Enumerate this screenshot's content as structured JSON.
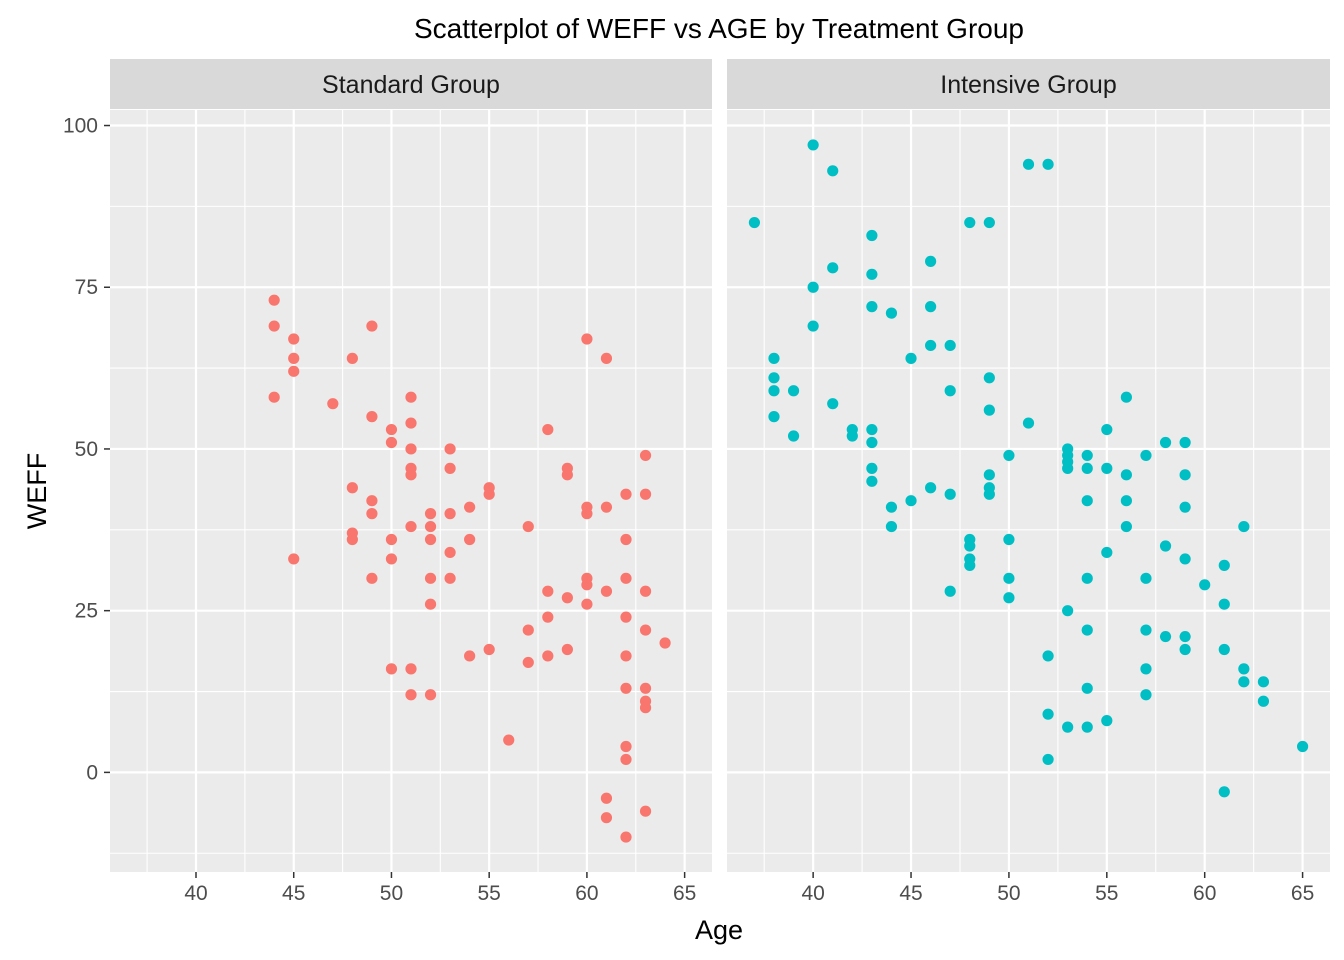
{
  "chart_data": {
    "type": "scatter",
    "title": "Scatterplot of WEFF vs AGE by Treatment Group",
    "xlabel": "Age",
    "ylabel": "WEFF",
    "xlim": [
      35.6,
      66.4
    ],
    "ylim": [
      -15.4,
      102.4
    ],
    "x_ticks": [
      40,
      45,
      50,
      55,
      60,
      65
    ],
    "y_ticks": [
      0,
      25,
      50,
      75,
      100
    ],
    "grid": true,
    "legend": "none",
    "panels": [
      {
        "name": "Standard Group",
        "color": "#F8766D",
        "points": [
          [
            44,
            73
          ],
          [
            44,
            69
          ],
          [
            44,
            58
          ],
          [
            45,
            67
          ],
          [
            45,
            64
          ],
          [
            45,
            62
          ],
          [
            45,
            33
          ],
          [
            47,
            57
          ],
          [
            48,
            64
          ],
          [
            48,
            44
          ],
          [
            48,
            37
          ],
          [
            48,
            36
          ],
          [
            49,
            69
          ],
          [
            49,
            55
          ],
          [
            49,
            42
          ],
          [
            49,
            40
          ],
          [
            49,
            30
          ],
          [
            50,
            53
          ],
          [
            50,
            51
          ],
          [
            50,
            36
          ],
          [
            50,
            33
          ],
          [
            50,
            16
          ],
          [
            51,
            58
          ],
          [
            51,
            54
          ],
          [
            51,
            50
          ],
          [
            51,
            47
          ],
          [
            51,
            46
          ],
          [
            51,
            38
          ],
          [
            51,
            16
          ],
          [
            51,
            12
          ],
          [
            52,
            40
          ],
          [
            52,
            38
          ],
          [
            52,
            36
          ],
          [
            52,
            30
          ],
          [
            52,
            26
          ],
          [
            52,
            12
          ],
          [
            53,
            50
          ],
          [
            53,
            47
          ],
          [
            53,
            40
          ],
          [
            53,
            34
          ],
          [
            53,
            30
          ],
          [
            54,
            41
          ],
          [
            54,
            36
          ],
          [
            54,
            18
          ],
          [
            55,
            44
          ],
          [
            55,
            43
          ],
          [
            55,
            19
          ],
          [
            56,
            5
          ],
          [
            57,
            38
          ],
          [
            57,
            22
          ],
          [
            57,
            17
          ],
          [
            58,
            53
          ],
          [
            58,
            28
          ],
          [
            58,
            24
          ],
          [
            58,
            18
          ],
          [
            59,
            47
          ],
          [
            59,
            46
          ],
          [
            59,
            27
          ],
          [
            59,
            19
          ],
          [
            60,
            67
          ],
          [
            60,
            41
          ],
          [
            60,
            40
          ],
          [
            60,
            30
          ],
          [
            60,
            29
          ],
          [
            60,
            26
          ],
          [
            61,
            64
          ],
          [
            61,
            41
          ],
          [
            61,
            28
          ],
          [
            61,
            -4
          ],
          [
            61,
            -7
          ],
          [
            62,
            43
          ],
          [
            62,
            36
          ],
          [
            62,
            30
          ],
          [
            62,
            24
          ],
          [
            62,
            18
          ],
          [
            62,
            13
          ],
          [
            62,
            4
          ],
          [
            62,
            2
          ],
          [
            62,
            -10
          ],
          [
            63,
            49
          ],
          [
            63,
            43
          ],
          [
            63,
            28
          ],
          [
            63,
            22
          ],
          [
            63,
            13
          ],
          [
            63,
            11
          ],
          [
            63,
            10
          ],
          [
            63,
            -6
          ],
          [
            64,
            20
          ]
        ]
      },
      {
        "name": "Intensive Group",
        "color": "#00BFC4",
        "points": [
          [
            37,
            85
          ],
          [
            38,
            64
          ],
          [
            38,
            61
          ],
          [
            38,
            59
          ],
          [
            38,
            55
          ],
          [
            39,
            59
          ],
          [
            39,
            52
          ],
          [
            40,
            97
          ],
          [
            40,
            75
          ],
          [
            40,
            69
          ],
          [
            41,
            93
          ],
          [
            41,
            78
          ],
          [
            41,
            57
          ],
          [
            42,
            53
          ],
          [
            42,
            52
          ],
          [
            43,
            83
          ],
          [
            43,
            77
          ],
          [
            43,
            72
          ],
          [
            43,
            53
          ],
          [
            43,
            51
          ],
          [
            43,
            47
          ],
          [
            43,
            45
          ],
          [
            44,
            71
          ],
          [
            44,
            41
          ],
          [
            44,
            38
          ],
          [
            45,
            64
          ],
          [
            45,
            42
          ],
          [
            46,
            79
          ],
          [
            46,
            72
          ],
          [
            46,
            66
          ],
          [
            46,
            44
          ],
          [
            47,
            66
          ],
          [
            47,
            59
          ],
          [
            47,
            43
          ],
          [
            47,
            28
          ],
          [
            48,
            85
          ],
          [
            48,
            36
          ],
          [
            48,
            35
          ],
          [
            48,
            33
          ],
          [
            48,
            32
          ],
          [
            49,
            85
          ],
          [
            49,
            61
          ],
          [
            49,
            56
          ],
          [
            49,
            46
          ],
          [
            49,
            44
          ],
          [
            49,
            43
          ],
          [
            50,
            49
          ],
          [
            50,
            36
          ],
          [
            50,
            30
          ],
          [
            50,
            27
          ],
          [
            51,
            94
          ],
          [
            51,
            54
          ],
          [
            52,
            94
          ],
          [
            52,
            18
          ],
          [
            52,
            9
          ],
          [
            52,
            2
          ],
          [
            53,
            50
          ],
          [
            53,
            49
          ],
          [
            53,
            48
          ],
          [
            53,
            47
          ],
          [
            53,
            25
          ],
          [
            53,
            7
          ],
          [
            54,
            49
          ],
          [
            54,
            47
          ],
          [
            54,
            42
          ],
          [
            54,
            30
          ],
          [
            54,
            22
          ],
          [
            54,
            13
          ],
          [
            54,
            7
          ],
          [
            55,
            53
          ],
          [
            55,
            47
          ],
          [
            55,
            34
          ],
          [
            55,
            8
          ],
          [
            56,
            58
          ],
          [
            56,
            46
          ],
          [
            56,
            42
          ],
          [
            56,
            38
          ],
          [
            57,
            49
          ],
          [
            57,
            30
          ],
          [
            57,
            22
          ],
          [
            57,
            16
          ],
          [
            57,
            12
          ],
          [
            58,
            51
          ],
          [
            58,
            35
          ],
          [
            58,
            21
          ],
          [
            59,
            51
          ],
          [
            59,
            46
          ],
          [
            59,
            41
          ],
          [
            59,
            33
          ],
          [
            59,
            21
          ],
          [
            59,
            19
          ],
          [
            60,
            29
          ],
          [
            61,
            32
          ],
          [
            61,
            26
          ],
          [
            61,
            19
          ],
          [
            61,
            -3
          ],
          [
            62,
            38
          ],
          [
            62,
            16
          ],
          [
            62,
            14
          ],
          [
            63,
            14
          ],
          [
            63,
            11
          ],
          [
            65,
            4
          ]
        ]
      }
    ]
  }
}
